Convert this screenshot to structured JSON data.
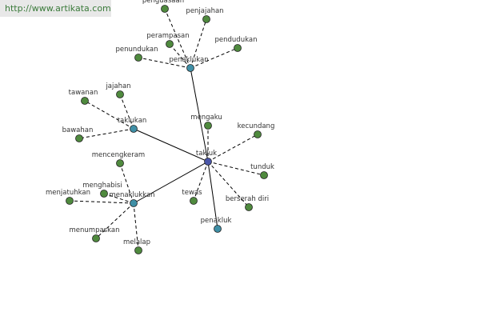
{
  "watermark": "http://www.artikata.com",
  "nodes": [
    {
      "label": "takluk"
    },
    {
      "label": "penaklukan"
    },
    {
      "label": "taklukan"
    },
    {
      "label": "menaklukkan"
    },
    {
      "label": "penakluk"
    },
    {
      "label": "penguasaan"
    },
    {
      "label": "penjajahan"
    },
    {
      "label": "perampasan"
    },
    {
      "label": "pendudukan"
    },
    {
      "label": "penundukan"
    },
    {
      "label": "jajahan"
    },
    {
      "label": "tawanan"
    },
    {
      "label": "bawahan"
    },
    {
      "label": "mengaku"
    },
    {
      "label": "kecundang"
    },
    {
      "label": "tunduk"
    },
    {
      "label": "berserah diri"
    },
    {
      "label": "tewas"
    },
    {
      "label": "mencengkeram"
    },
    {
      "label": "menghabisi"
    },
    {
      "label": "menjatuhkan"
    },
    {
      "label": "menumpaskan"
    },
    {
      "label": "melalap"
    }
  ]
}
